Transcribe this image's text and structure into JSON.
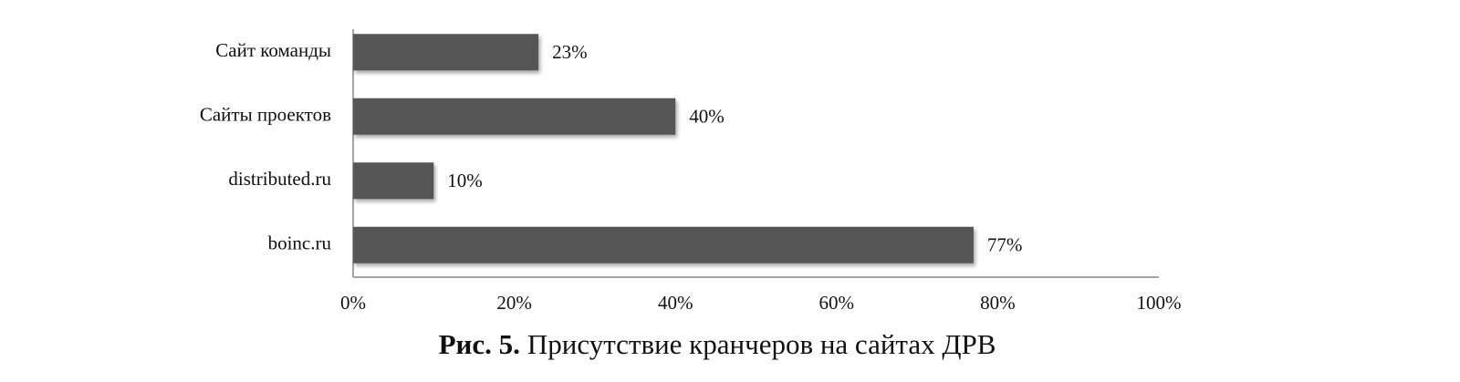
{
  "chart_data": {
    "type": "bar",
    "orientation": "horizontal",
    "categories": [
      "Сайт команды",
      "Сайты проектов",
      "distributed.ru",
      "boinc.ru"
    ],
    "values": [
      23,
      40,
      10,
      77
    ],
    "value_labels": [
      "23%",
      "40%",
      "10%",
      "77%"
    ],
    "color": "#555555",
    "xlim": [
      0,
      100
    ],
    "xticks": [
      {
        "value": 0,
        "label": "0%"
      },
      {
        "value": 20,
        "label": "20%"
      },
      {
        "value": 40,
        "label": "40%"
      },
      {
        "value": 60,
        "label": "60%"
      },
      {
        "value": 80,
        "label": "80%"
      },
      {
        "value": 100,
        "label": "100%"
      }
    ],
    "grid": false,
    "caption_label": "Рис. 5.",
    "caption": "Присутствие кранчеров на сайтах ДРВ"
  }
}
